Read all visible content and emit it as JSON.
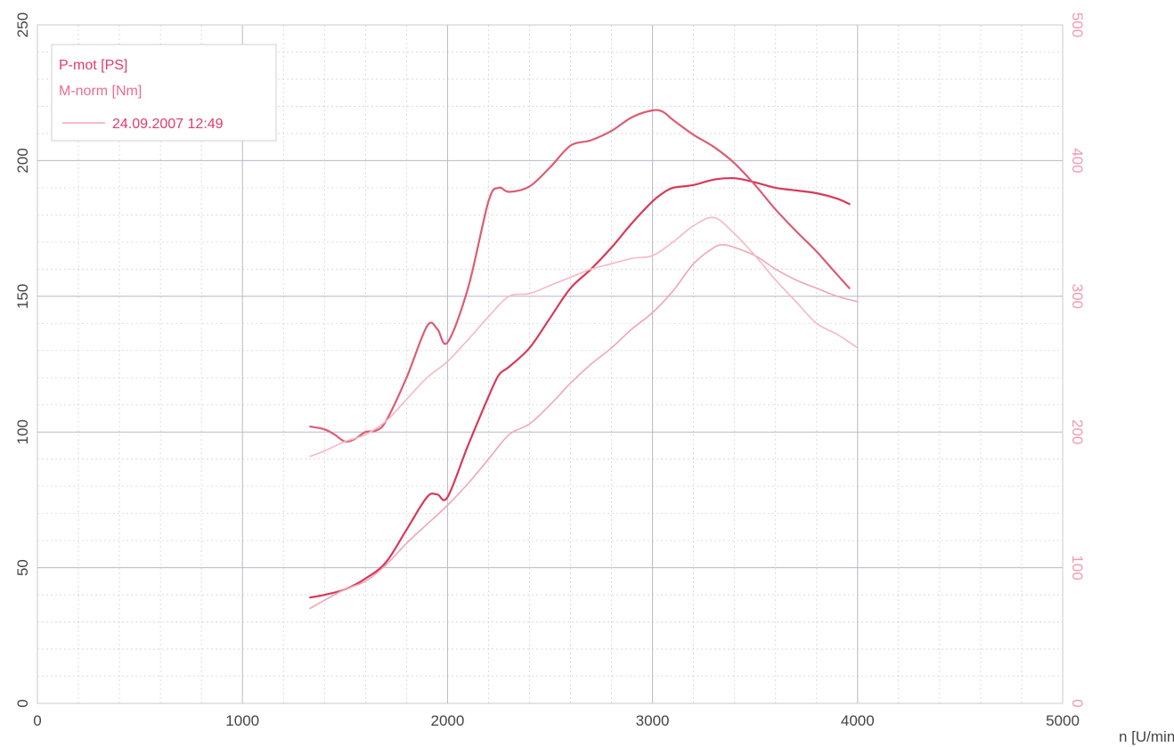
{
  "colors": {
    "left_axis_text": "#444444",
    "right_axis_text": "#f29ab0",
    "legend_text": "#e33a66",
    "grid_major": "#b8b8c8",
    "grid_minor": "#d4d4d4",
    "series_power_dark": "#d63a5a",
    "series_power_light": "#f0a6b6",
    "series_torque_dark": "#dc5c74",
    "series_torque_light": "#f5b7c4"
  },
  "legend": {
    "line1": "P-mot [PS]",
    "line2": "M-norm [Nm]",
    "line3": "24.09.2007 12:49"
  },
  "chart_data": {
    "type": "line",
    "title": "",
    "xlabel": "n [U/min]",
    "xlim": [
      0,
      5000
    ],
    "ylim_left": [
      0,
      250
    ],
    "ylim_right": [
      0,
      500
    ],
    "x_ticks": [
      "0",
      "1000",
      "2000",
      "3000",
      "4000",
      "5000"
    ],
    "y_left_ticks": [
      "0",
      "50",
      "100",
      "150",
      "200",
      "250"
    ],
    "y_right_ticks": [
      "0",
      "100",
      "200",
      "300",
      "400",
      "500"
    ],
    "grid": true,
    "legend_position": "top-left",
    "series": [
      {
        "axis": "left",
        "style": "dark",
        "x": [
          1330,
          1400,
          1500,
          1600,
          1700,
          1800,
          1900,
          1950,
          2000,
          2100,
          2200,
          2250,
          2300,
          2400,
          2500,
          2600,
          2700,
          2800,
          2900,
          3000,
          3050,
          3100,
          3200,
          3300,
          3400,
          3500,
          3600,
          3700,
          3800,
          3900,
          3960
        ],
        "y": [
          39,
          40,
          42,
          46,
          52,
          64,
          76,
          77,
          76,
          95,
          113,
          121,
          124,
          131,
          142,
          153,
          160,
          168,
          177,
          185,
          188,
          190,
          191,
          193,
          193.5,
          192,
          190,
          189,
          188,
          186,
          184
        ]
      },
      {
        "axis": "left",
        "style": "light",
        "x": [
          1330,
          1400,
          1500,
          1600,
          1700,
          1800,
          1900,
          2000,
          2100,
          2200,
          2300,
          2400,
          2500,
          2600,
          2700,
          2800,
          2900,
          3000,
          3100,
          3200,
          3300,
          3350,
          3400,
          3500,
          3600,
          3700,
          3800,
          3900,
          4000
        ],
        "y": [
          35,
          38,
          42,
          45,
          51,
          59,
          66,
          73,
          81,
          90,
          99,
          103,
          110,
          118,
          125,
          131,
          138,
          144,
          152,
          162,
          168,
          169,
          168,
          165,
          160,
          156,
          153,
          150,
          148
        ]
      },
      {
        "axis": "right",
        "style": "dark",
        "x": [
          1330,
          1400,
          1450,
          1500,
          1550,
          1600,
          1650,
          1700,
          1800,
          1900,
          1950,
          2000,
          2100,
          2200,
          2250,
          2300,
          2400,
          2500,
          2600,
          2700,
          2800,
          2900,
          3000,
          3050,
          3100,
          3200,
          3300,
          3400,
          3500,
          3600,
          3700,
          3800,
          3900,
          3960
        ],
        "y": [
          204,
          202,
          198,
          193,
          195,
          200,
          201,
          208,
          240,
          278,
          276,
          266,
          306,
          370,
          380,
          377,
          381,
          395,
          411,
          415,
          422,
          432,
          437,
          436,
          430,
          419,
          410,
          398,
          382,
          364,
          348,
          333,
          316,
          306
        ]
      },
      {
        "axis": "right",
        "style": "light",
        "x": [
          1330,
          1400,
          1500,
          1600,
          1700,
          1800,
          1900,
          2000,
          2100,
          2200,
          2300,
          2400,
          2500,
          2600,
          2700,
          2800,
          2900,
          3000,
          3100,
          3200,
          3300,
          3400,
          3500,
          3600,
          3700,
          3800,
          3900,
          4000
        ],
        "y": [
          182,
          186,
          193,
          198,
          208,
          224,
          240,
          252,
          268,
          285,
          300,
          302,
          308,
          314,
          320,
          324,
          328,
          330,
          340,
          352,
          358,
          346,
          330,
          312,
          296,
          280,
          272,
          262
        ]
      }
    ]
  }
}
